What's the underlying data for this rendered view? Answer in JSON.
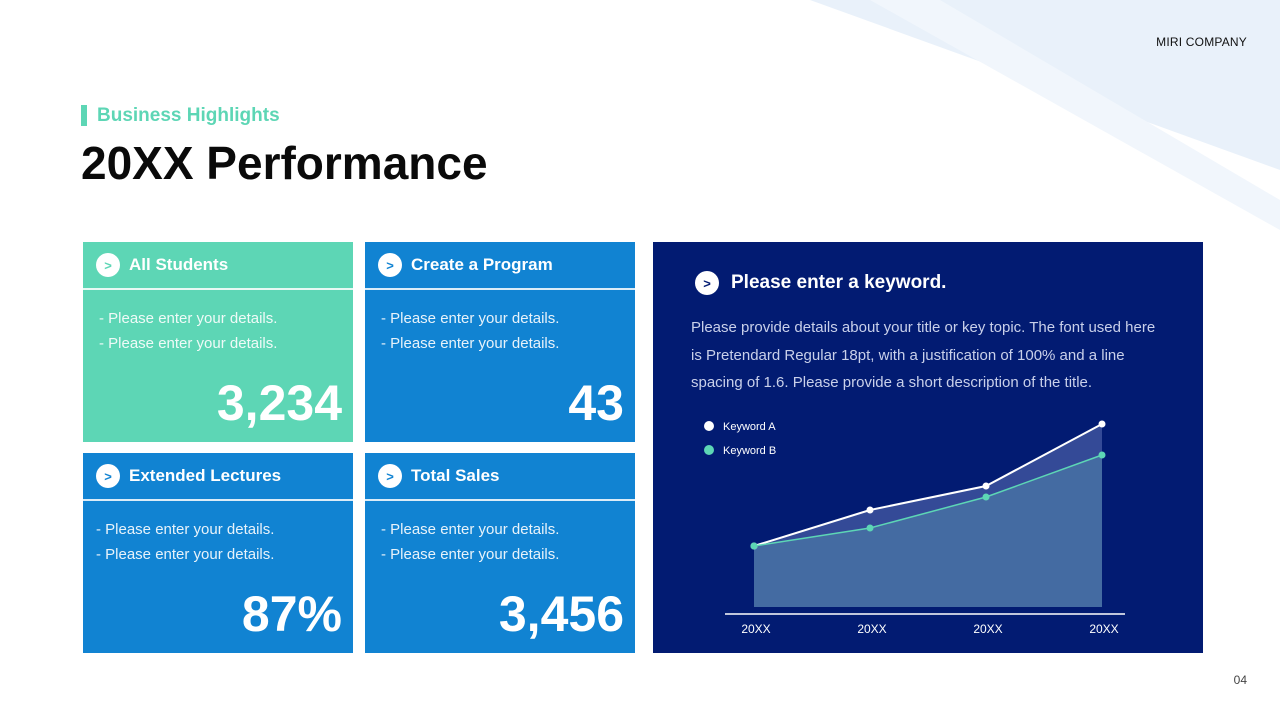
{
  "header": {
    "company": "MIRI COMPANY",
    "subtitle": "Business Highlights",
    "title": "20XX Performance",
    "page": "04"
  },
  "cards": [
    {
      "title": "All Students",
      "lines": [
        "- Please enter your details.",
        "- Please enter your details."
      ],
      "value": "3,234",
      "color": "#5dd6b5"
    },
    {
      "title": "Create a Program",
      "lines": [
        "- Please enter your details.",
        "- Please enter your details."
      ],
      "value": "43",
      "color": "#1183d2"
    },
    {
      "title": "Extended Lectures",
      "lines": [
        "- Please enter your details.",
        "- Please enter your details."
      ],
      "value": "87%",
      "color": "#1183d2"
    },
    {
      "title": "Total Sales",
      "lines": [
        "- Please enter your details.",
        "- Please enter your details."
      ],
      "value": "3,456",
      "color": "#1183d2"
    }
  ],
  "panel": {
    "heading": "Please enter a keyword.",
    "description": "Please provide details about your title or key topic. The font used here is Pretendard Regular 18pt, with a justification of 100% and a line spacing of 1.6. Please provide a short description of the title.",
    "background": "#021b72"
  },
  "chart_data": {
    "type": "area",
    "categories": [
      "20XX",
      "20XX",
      "20XX",
      "20XX"
    ],
    "series": [
      {
        "name": "Keyword A",
        "values": [
          61,
          97,
          121,
          183
        ],
        "color": "#ffffff"
      },
      {
        "name": "Keyword B",
        "values": [
          61,
          79,
          110,
          152
        ],
        "color": "#5dd6b5"
      }
    ],
    "ylim": [
      0,
      190
    ],
    "grid": false,
    "legend": "top-left",
    "yaxis_visible": false
  }
}
